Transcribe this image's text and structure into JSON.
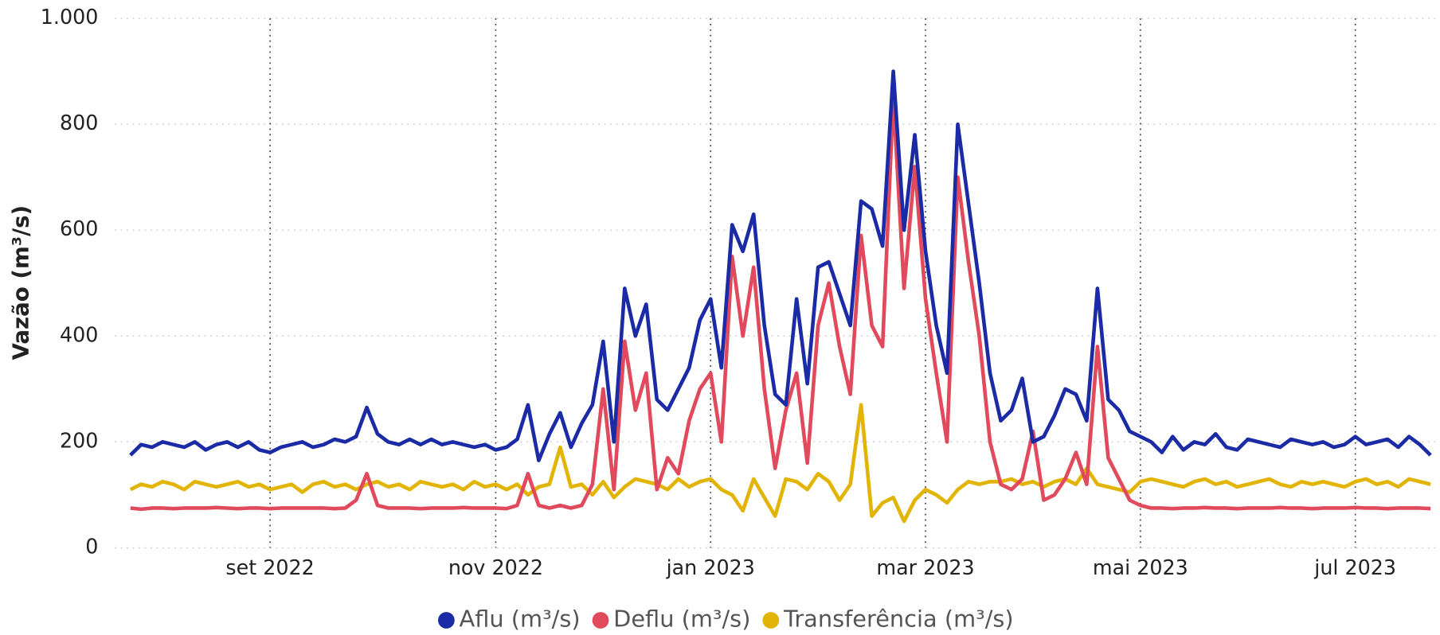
{
  "chart_data": {
    "type": "line",
    "y_label": "Vazão (m³/s)",
    "categories": [
      null,
      null,
      null,
      null,
      null,
      null,
      null,
      null,
      null,
      null,
      null,
      null,
      null,
      "set 2022",
      null,
      null,
      null,
      null,
      null,
      null,
      null,
      null,
      null,
      null,
      null,
      null,
      null,
      null,
      null,
      null,
      null,
      null,
      null,
      null,
      "nov 2022",
      null,
      null,
      null,
      null,
      null,
      null,
      null,
      null,
      null,
      null,
      null,
      null,
      null,
      null,
      null,
      null,
      null,
      null,
      null,
      "jan 2023",
      null,
      null,
      null,
      null,
      null,
      null,
      null,
      null,
      null,
      null,
      null,
      null,
      null,
      null,
      null,
      null,
      null,
      null,
      null,
      "mar 2023",
      null,
      null,
      null,
      null,
      null,
      null,
      null,
      null,
      null,
      null,
      null,
      null,
      null,
      null,
      null,
      null,
      null,
      null,
      null,
      "mai 2023",
      null,
      null,
      null,
      null,
      null,
      null,
      null,
      null,
      null,
      null,
      null,
      null,
      null,
      null,
      null,
      null,
      null,
      null,
      null,
      "jul 2023",
      null,
      null,
      null,
      null,
      null,
      null,
      null
    ],
    "series": [
      {
        "name": "Aflu (m³/s)",
        "color": "#1b2aa5",
        "values": [
          175,
          195,
          190,
          200,
          195,
          190,
          200,
          185,
          195,
          200,
          190,
          200,
          185,
          180,
          190,
          195,
          200,
          190,
          195,
          205,
          200,
          210,
          265,
          215,
          200,
          195,
          205,
          195,
          205,
          195,
          200,
          195,
          190,
          195,
          185,
          190,
          205,
          270,
          165,
          215,
          255,
          190,
          235,
          270,
          390,
          200,
          490,
          400,
          460,
          280,
          260,
          300,
          340,
          430,
          470,
          340,
          610,
          560,
          630,
          420,
          290,
          270,
          470,
          310,
          530,
          540,
          480,
          420,
          655,
          640,
          570,
          900,
          600,
          780,
          560,
          420,
          330,
          800,
          650,
          500,
          330,
          240,
          260,
          320,
          200,
          210,
          250,
          300,
          290,
          240,
          490,
          280,
          260,
          220,
          210,
          200,
          180,
          210,
          185,
          200,
          195,
          215,
          190,
          185,
          205,
          200,
          195,
          190,
          205,
          200,
          195,
          200,
          190,
          195,
          210,
          195,
          200,
          205,
          190,
          210,
          195,
          175
        ]
      },
      {
        "name": "Deflu (m³/s)",
        "color": "#e04a5c",
        "values": [
          75,
          73,
          75,
          75,
          74,
          75,
          75,
          75,
          76,
          75,
          74,
          75,
          75,
          74,
          75,
          75,
          75,
          75,
          75,
          74,
          75,
          90,
          140,
          80,
          75,
          75,
          75,
          74,
          75,
          75,
          75,
          76,
          75,
          75,
          75,
          74,
          80,
          140,
          80,
          75,
          80,
          75,
          80,
          120,
          300,
          110,
          390,
          260,
          330,
          110,
          170,
          140,
          240,
          300,
          330,
          200,
          550,
          400,
          530,
          300,
          150,
          260,
          330,
          160,
          420,
          500,
          380,
          290,
          590,
          420,
          380,
          850,
          490,
          720,
          470,
          330,
          200,
          700,
          540,
          400,
          200,
          120,
          110,
          130,
          220,
          90,
          100,
          130,
          180,
          120,
          380,
          170,
          130,
          90,
          80,
          75,
          75,
          74,
          75,
          75,
          76,
          75,
          75,
          74,
          75,
          75,
          75,
          76,
          75,
          75,
          74,
          75,
          75,
          75,
          76,
          75,
          75,
          74,
          75,
          75,
          75,
          74
        ]
      },
      {
        "name": "Transferência (m³/s)",
        "color": "#e2b405",
        "values": [
          110,
          120,
          115,
          125,
          120,
          110,
          125,
          120,
          115,
          120,
          125,
          115,
          120,
          110,
          115,
          120,
          105,
          120,
          125,
          115,
          120,
          110,
          120,
          125,
          115,
          120,
          110,
          125,
          120,
          115,
          120,
          110,
          125,
          115,
          120,
          110,
          120,
          100,
          115,
          120,
          190,
          115,
          120,
          100,
          125,
          95,
          115,
          130,
          125,
          120,
          110,
          130,
          115,
          125,
          130,
          110,
          100,
          70,
          130,
          95,
          60,
          130,
          125,
          110,
          140,
          125,
          90,
          120,
          270,
          60,
          85,
          95,
          50,
          90,
          110,
          100,
          85,
          110,
          125,
          120,
          125,
          125,
          130,
          120,
          125,
          115,
          125,
          130,
          120,
          150,
          120,
          115,
          110,
          105,
          125,
          130,
          125,
          120,
          115,
          125,
          130,
          120,
          125,
          115,
          120,
          125,
          130,
          120,
          115,
          125,
          120,
          125,
          120,
          115,
          125,
          130,
          120,
          125,
          115,
          130,
          125,
          120
        ]
      }
    ],
    "ylim": [
      0,
      1000
    ],
    "yticks": [
      0,
      200,
      400,
      600,
      800,
      {
        "value": 1000,
        "label": "1.000"
      }
    ],
    "grid": true,
    "legend": "bottom"
  }
}
